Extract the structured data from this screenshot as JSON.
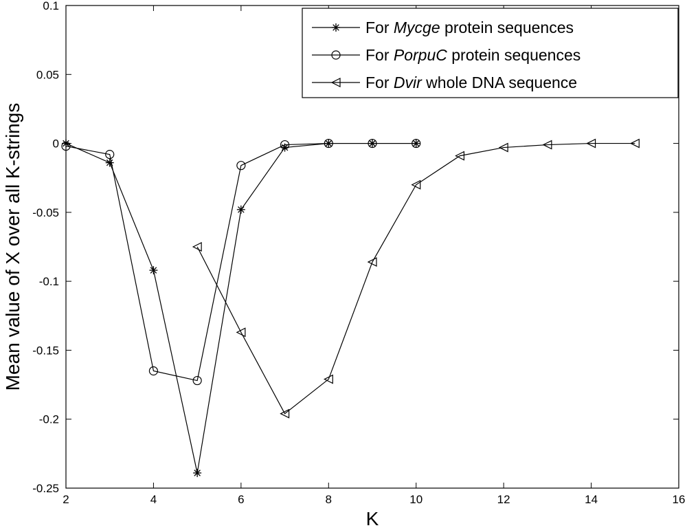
{
  "chart_data": {
    "type": "line",
    "xlabel": "K",
    "ylabel": "Mean value of X over all K-strings",
    "xlim": [
      2,
      16
    ],
    "ylim": [
      -0.25,
      0.1
    ],
    "xticks": [
      "2",
      "4",
      "6",
      "8",
      "10",
      "12",
      "14",
      "16"
    ],
    "yticks": [
      "-0.25",
      "-0.2",
      "-0.15",
      "-0.1",
      "-0.05",
      "0",
      "0.05",
      "0.1"
    ],
    "grid": false,
    "legend_position": "top-right",
    "series": [
      {
        "name": "For Mycge protein sequences",
        "legend_parts": [
          "For ",
          "Mycge",
          " protein sequences"
        ],
        "marker": "asterisk",
        "x": [
          2,
          3,
          4,
          5,
          6,
          7,
          8,
          9,
          10
        ],
        "y": [
          0,
          -0.014,
          -0.092,
          -0.239,
          -0.048,
          -0.003,
          0,
          0,
          0
        ]
      },
      {
        "name": "For PorpuC protein sequences",
        "legend_parts": [
          "For ",
          "PorpuC",
          " protein sequences"
        ],
        "marker": "circle",
        "x": [
          2,
          3,
          4,
          5,
          6,
          7,
          8,
          9,
          10
        ],
        "y": [
          -0.002,
          -0.008,
          -0.165,
          -0.172,
          -0.016,
          -0.001,
          0,
          0,
          0
        ]
      },
      {
        "name": "For Dvir whole DNA sequence",
        "legend_parts": [
          "For ",
          "Dvir",
          " whole DNA sequence"
        ],
        "marker": "triangle-left",
        "x": [
          5,
          6,
          7,
          8,
          9,
          10,
          11,
          12,
          13,
          14,
          15
        ],
        "y": [
          -0.075,
          -0.137,
          -0.196,
          -0.171,
          -0.086,
          -0.03,
          -0.009,
          -0.003,
          -0.001,
          0,
          0
        ]
      }
    ]
  }
}
